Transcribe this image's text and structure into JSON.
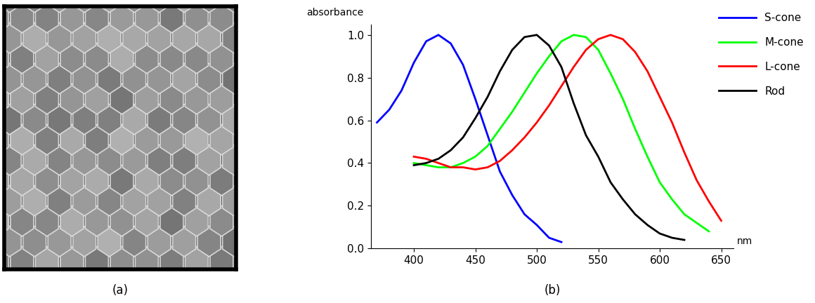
{
  "image": {
    "caption": "(a)"
  },
  "chart_data": {
    "type": "line",
    "caption": "(b)",
    "x_label": "nm",
    "y_label": "absorbance",
    "xlim": [
      365,
      660
    ],
    "xticks": [
      400,
      450,
      500,
      550,
      600,
      650
    ],
    "ylim": [
      0,
      1.05
    ],
    "yticks": [
      {
        "value": 0,
        "label": "0.0"
      },
      0.2,
      0.4,
      0.6,
      0.8,
      {
        "value": 1,
        "label": "1.0"
      }
    ],
    "grid": false,
    "legend": "upper right",
    "series": [
      {
        "name": "S-cone",
        "color": "#0000ff",
        "x": [
          370,
          380,
          390,
          400,
          410,
          420,
          430,
          440,
          450,
          460,
          470,
          480,
          490,
          500,
          510,
          520
        ],
        "values": [
          0.59,
          0.65,
          0.74,
          0.87,
          0.97,
          1.0,
          0.96,
          0.86,
          0.7,
          0.53,
          0.36,
          0.25,
          0.16,
          0.11,
          0.05,
          0.03
        ]
      },
      {
        "name": "M-cone",
        "color": "#00ff00",
        "x": [
          400,
          410,
          420,
          430,
          440,
          450,
          460,
          470,
          480,
          490,
          500,
          510,
          520,
          530,
          540,
          550,
          560,
          570,
          580,
          590,
          600,
          610,
          620,
          630,
          640
        ],
        "values": [
          0.4,
          0.39,
          0.38,
          0.38,
          0.4,
          0.43,
          0.48,
          0.56,
          0.64,
          0.73,
          0.82,
          0.9,
          0.97,
          1.0,
          0.99,
          0.93,
          0.82,
          0.7,
          0.56,
          0.43,
          0.31,
          0.23,
          0.16,
          0.12,
          0.08
        ]
      },
      {
        "name": "L-cone",
        "color": "#ff0000",
        "x": [
          400,
          410,
          420,
          430,
          440,
          450,
          460,
          470,
          480,
          490,
          500,
          510,
          520,
          530,
          540,
          550,
          560,
          570,
          580,
          590,
          600,
          610,
          620,
          630,
          640,
          650
        ],
        "values": [
          0.43,
          0.42,
          0.4,
          0.38,
          0.38,
          0.37,
          0.38,
          0.41,
          0.46,
          0.52,
          0.59,
          0.67,
          0.76,
          0.85,
          0.93,
          0.98,
          1.0,
          0.98,
          0.92,
          0.83,
          0.71,
          0.59,
          0.45,
          0.32,
          0.22,
          0.13
        ]
      },
      {
        "name": "Rod",
        "color": "#000000",
        "x": [
          400,
          410,
          420,
          430,
          440,
          450,
          460,
          470,
          480,
          490,
          500,
          510,
          520,
          530,
          540,
          550,
          560,
          570,
          580,
          590,
          600,
          610,
          620
        ],
        "values": [
          0.39,
          0.4,
          0.42,
          0.46,
          0.52,
          0.61,
          0.71,
          0.83,
          0.93,
          0.99,
          1.0,
          0.95,
          0.85,
          0.68,
          0.53,
          0.43,
          0.31,
          0.23,
          0.16,
          0.11,
          0.07,
          0.05,
          0.04
        ]
      }
    ]
  }
}
